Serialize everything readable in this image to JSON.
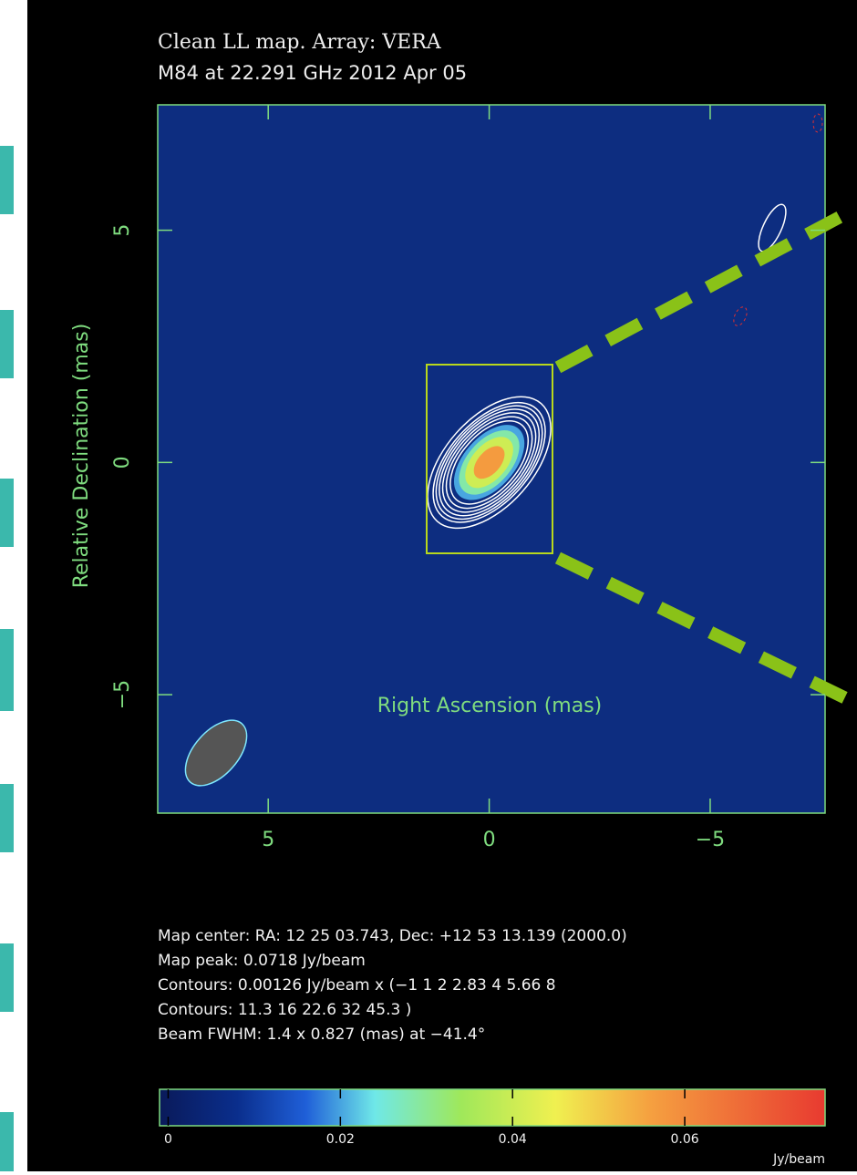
{
  "chart_data": {
    "type": "contour",
    "title": "Clean LL map.  Array:  VERA",
    "subtitle": "M84 at 22.291 GHz 2012 Apr 05",
    "x_label": "Right Ascension  (mas)",
    "y_label": "Relative Declination  (mas)",
    "xlim": [
      7.5,
      -7.6
    ],
    "ylim": [
      -7.55,
      7.7
    ],
    "xticks": [
      {
        "value": 5,
        "label": "5"
      },
      {
        "value": 0,
        "label": "0"
      },
      {
        "value": -5,
        "label": "−5"
      }
    ],
    "yticks": [
      {
        "value": -5,
        "label": "−5"
      },
      {
        "value": 0,
        "label": "0"
      },
      {
        "value": 5,
        "label": "5"
      }
    ],
    "peak": 0.0718,
    "contour_base": 0.00126,
    "contour_levels": [
      1,
      2,
      2.83,
      4,
      5.66,
      8,
      11.3,
      16,
      22.6,
      32,
      45.3
    ],
    "beam": {
      "major": 1.4,
      "minor": 0.827,
      "pa": -41.4
    },
    "notes": [
      "Map center:  RA: 12 25 03.743,  Dec: +12 53 13.139 (2000.0)",
      "Map peak: 0.0718 Jy/beam",
      "Contours: 0.00126 Jy/beam x (−1 1 2 2.83 4 5.66 8",
      "Contours: 11.3 16 22.6 32 45.3 )",
      "Beam FWHM: 1.4 x 0.827 (mas) at −41.4°"
    ],
    "colorbar": {
      "label": "Jy/beam",
      "lim": [
        -0.001,
        0.0763
      ],
      "ticks": [
        0,
        0.02,
        0.04,
        0.06
      ],
      "colormap": [
        {
          "value": -0.001,
          "color": "#0a1a5a"
        },
        {
          "value": 0.008,
          "color": "#0a2e8c"
        },
        {
          "value": 0.016,
          "color": "#1f5fd8"
        },
        {
          "value": 0.024,
          "color": "#6fe8e8"
        },
        {
          "value": 0.034,
          "color": "#9fe85a"
        },
        {
          "value": 0.045,
          "color": "#f0f050"
        },
        {
          "value": 0.056,
          "color": "#f5a040"
        },
        {
          "value": 0.0763,
          "color": "#e83a30"
        }
      ]
    }
  }
}
